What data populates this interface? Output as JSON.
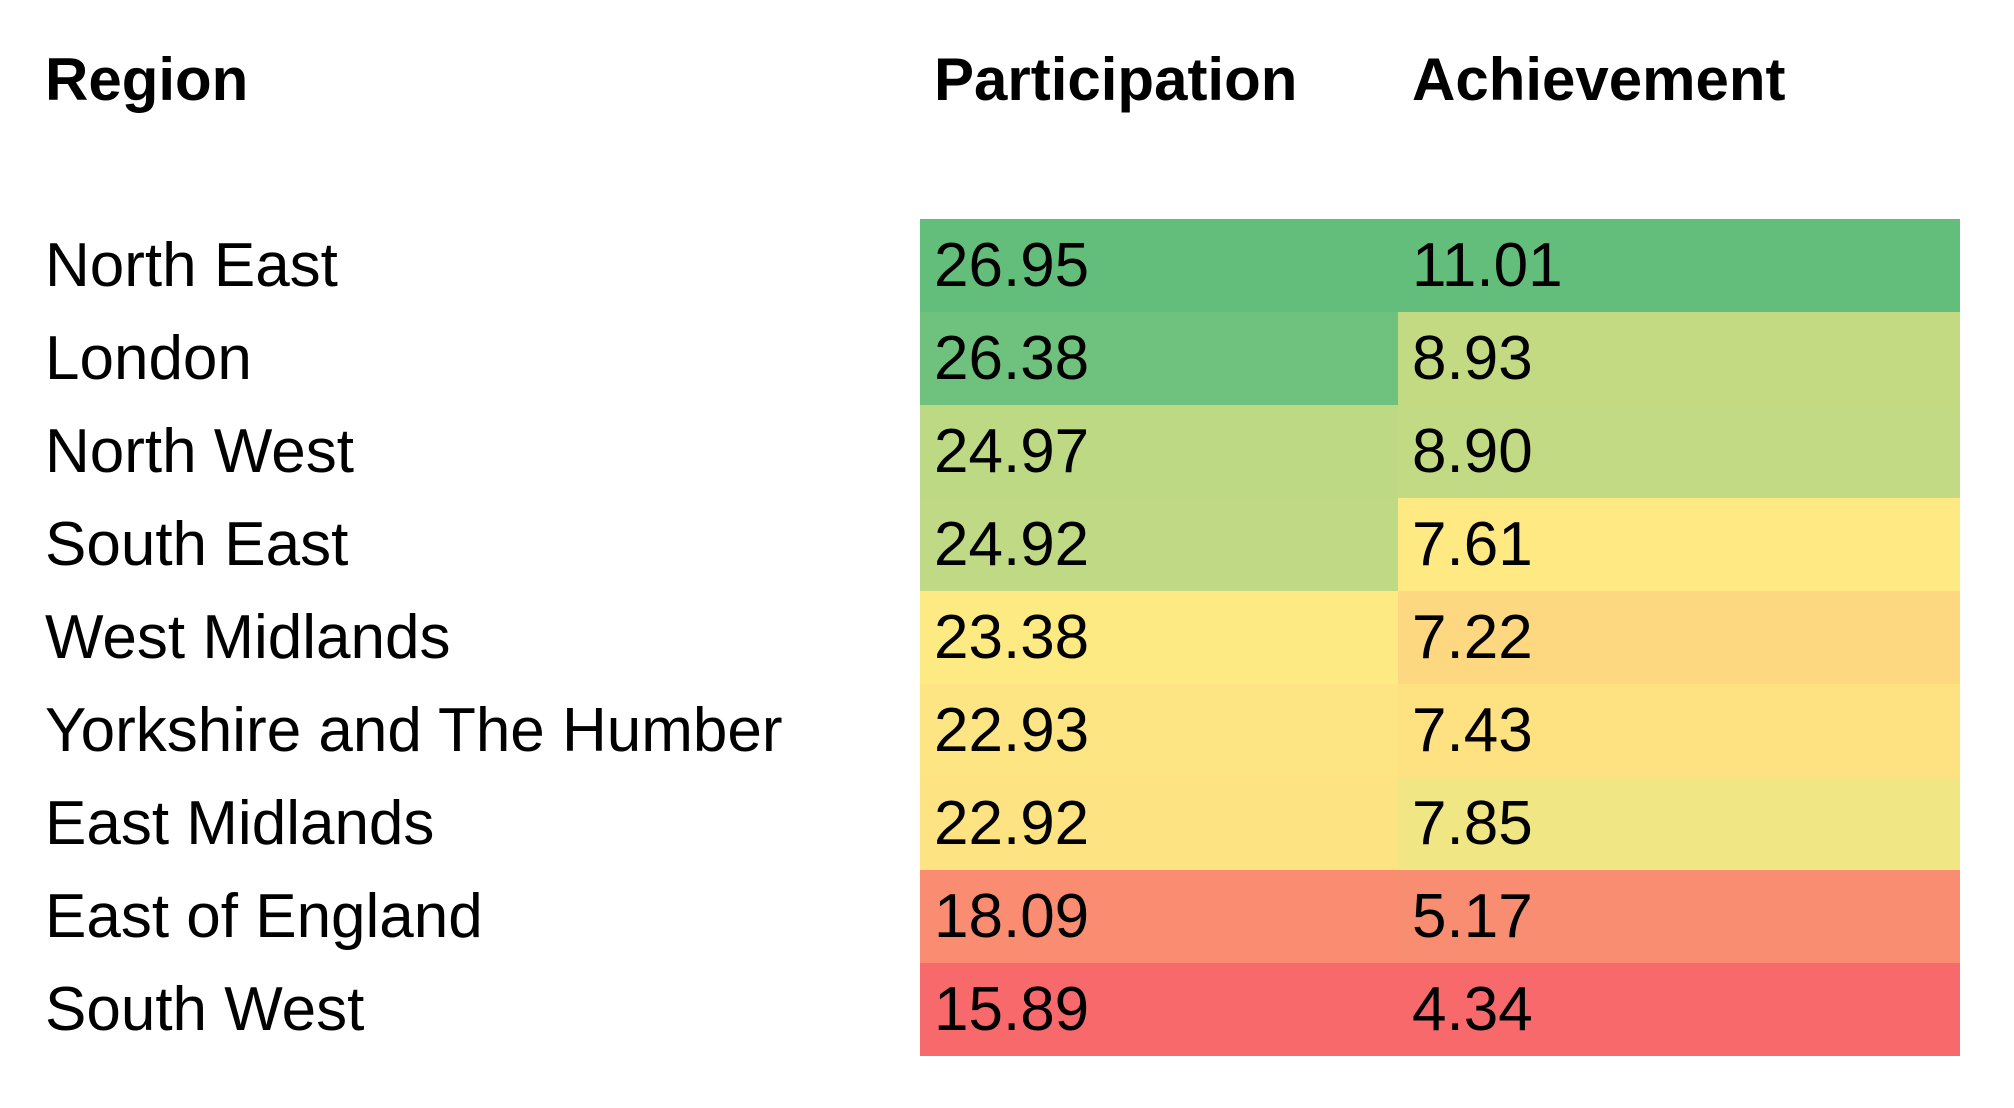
{
  "chart_data": {
    "type": "table",
    "columns": [
      "Region",
      "Participation",
      "Achievement"
    ],
    "rows": [
      {
        "region": "North East",
        "participation": "26.95",
        "achievement": "11.01",
        "participation_color": "#63BE7B",
        "achievement_color": "#63BE7B"
      },
      {
        "region": "London",
        "participation": "26.38",
        "achievement": "8.93",
        "participation_color": "#6FC27D",
        "achievement_color": "#C3DA82"
      },
      {
        "region": "North West",
        "participation": "24.97",
        "achievement": "8.90",
        "participation_color": "#BDD984",
        "achievement_color": "#C2DA83"
      },
      {
        "region": "South East",
        "participation": "24.92",
        "achievement": "7.61",
        "participation_color": "#BFD985",
        "achievement_color": "#FEE983"
      },
      {
        "region": "West Midlands",
        "participation": "23.38",
        "achievement": "7.22",
        "participation_color": "#FEEA83",
        "achievement_color": "#FDD880"
      },
      {
        "region": "Yorkshire and The Humber",
        "participation": "22.93",
        "achievement": "7.43",
        "participation_color": "#FEE583",
        "achievement_color": "#FEE282"
      },
      {
        "region": "East Midlands",
        "participation": "22.92",
        "achievement": "7.85",
        "participation_color": "#FDE382",
        "achievement_color": "#F0E784"
      },
      {
        "region": "East of England",
        "participation": "18.09",
        "achievement": "5.17",
        "participation_color": "#FA8D71",
        "achievement_color": "#F98D71"
      },
      {
        "region": "South West",
        "participation": "15.89",
        "achievement": "4.34",
        "participation_color": "#F8696B",
        "achievement_color": "#F8696B"
      }
    ]
  }
}
